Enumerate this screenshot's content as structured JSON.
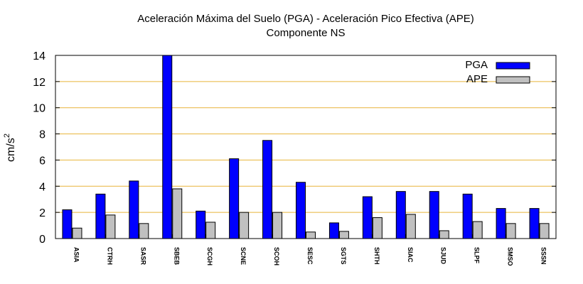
{
  "chart_data": {
    "type": "bar",
    "title": "Aceleración Máxima del Suelo (PGA) -  Aceleración Pico Efectiva (APE)",
    "subtitle": "Componente NS",
    "xlabel": "",
    "ylabel": "cm/s",
    "ylabel_superscript": "2",
    "ylim": [
      0,
      14
    ],
    "yticks": [
      0,
      2,
      4,
      6,
      8,
      10,
      12,
      14
    ],
    "grid": true,
    "legend_position": "top-right",
    "categories": [
      "ASIA",
      "CTRH",
      "SASR",
      "SBEB",
      "SCGH",
      "SCNE",
      "SCOH",
      "SESC",
      "SGTS",
      "SHTH",
      "SIAC",
      "SJUD",
      "SLPF",
      "SMSO",
      "SSSN"
    ],
    "series": [
      {
        "name": "PGA",
        "color": "#0000ff",
        "values": [
          2.2,
          3.4,
          4.4,
          14.0,
          2.1,
          6.1,
          7.5,
          4.3,
          1.2,
          3.2,
          3.6,
          3.6,
          3.4,
          2.3,
          2.3
        ]
      },
      {
        "name": "APE",
        "color": "#c0c0c0",
        "values": [
          0.8,
          1.8,
          1.15,
          3.8,
          1.25,
          2.0,
          2.0,
          0.5,
          0.55,
          1.6,
          1.85,
          0.6,
          1.3,
          1.15,
          1.15
        ]
      }
    ],
    "colors": {
      "grid": "#e8b43a",
      "axis": "#000000"
    }
  }
}
